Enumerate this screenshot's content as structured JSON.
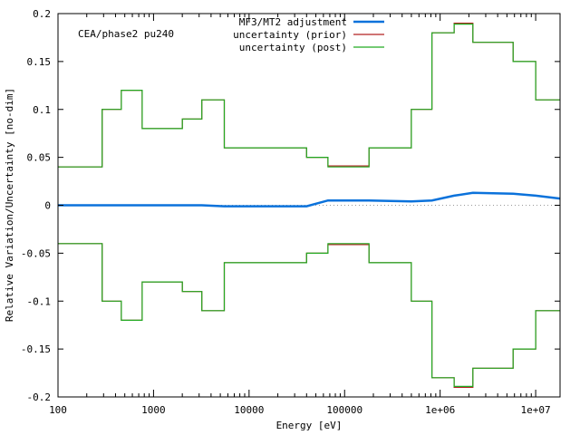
{
  "chart_data": {
    "type": "line",
    "annotation": "CEA/phase2 pu240",
    "xlabel": "Energy [eV]",
    "ylabel": "Relative Variation/Uncertainty [no-dim]",
    "xscale": "log",
    "xlim": [
      100,
      18000000
    ],
    "ylim": [
      -0.2,
      0.2
    ],
    "grid": false,
    "legend_position": "top-center",
    "zero_line": "dotted",
    "xticks": [
      {
        "value": 100,
        "label": "100"
      },
      {
        "value": 1000,
        "label": "1000"
      },
      {
        "value": 10000,
        "label": "10000"
      },
      {
        "value": 100000,
        "label": "100000"
      },
      {
        "value": 1000000,
        "label": "1e+06"
      },
      {
        "value": 10000000,
        "label": "1e+07"
      }
    ],
    "yticks": [
      {
        "value": 0.2,
        "label": "0.2"
      },
      {
        "value": 0.15,
        "label": "0.15"
      },
      {
        "value": 0.1,
        "label": "0.1"
      },
      {
        "value": 0.05,
        "label": "0.05"
      },
      {
        "value": 0,
        "label": "0"
      },
      {
        "value": -0.05,
        "label": "-0.05"
      },
      {
        "value": -0.1,
        "label": "-0.1"
      },
      {
        "value": -0.15,
        "label": "-0.15"
      },
      {
        "value": -0.2,
        "label": "-0.2"
      }
    ],
    "bin_edges": [
      100,
      290,
      460,
      760,
      2000,
      3200,
      5500,
      40000,
      67000,
      180000,
      500000,
      820000,
      1400000,
      2200000,
      5800000,
      10000000,
      18000000
    ],
    "series": [
      {
        "name": "MF3/MT2 adjustment",
        "color": "#0b72db",
        "width": 2.5,
        "values": [
          0.0,
          0.0,
          0.0,
          0.0,
          0.0,
          0.0,
          -0.001,
          -0.001,
          0.005,
          0.005,
          0.004,
          0.005,
          0.01,
          0.013,
          0.012,
          0.01,
          0.007
        ]
      },
      {
        "name": "uncertainty (prior)",
        "color": "#b22222",
        "width": 1.2,
        "mirror": true,
        "values": [
          0.04,
          0.1,
          0.12,
          0.08,
          0.09,
          0.11,
          0.06,
          0.05,
          0.041,
          0.06,
          0.1,
          0.18,
          0.19,
          0.17,
          0.15,
          0.11
        ]
      },
      {
        "name": "uncertainty (post)",
        "color": "#22aa22",
        "width": 1.2,
        "mirror": true,
        "values": [
          0.04,
          0.1,
          0.12,
          0.08,
          0.09,
          0.11,
          0.06,
          0.05,
          0.04,
          0.06,
          0.1,
          0.18,
          0.189,
          0.17,
          0.15,
          0.11
        ]
      }
    ]
  }
}
